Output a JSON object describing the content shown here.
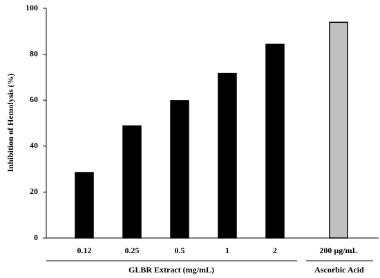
{
  "chart_data": {
    "type": "bar",
    "y_label": "Inhibition of Hemolysis (%)",
    "categories": [
      "0.12",
      "0.25",
      "0.5",
      "1",
      "2",
      "200 µg/mL"
    ],
    "values": [
      28.5,
      48.8,
      59.8,
      71.6,
      84.3,
      93.9
    ],
    "colors": [
      "#000000",
      "#000000",
      "#000000",
      "#000000",
      "#000000",
      "#c0c0c0"
    ],
    "group_labels": [
      "GLBR Extract (mg/mL)",
      "Ascorbic Acid"
    ],
    "ylim": [
      0,
      100
    ],
    "yticks": [
      0,
      20,
      40,
      60,
      80,
      100
    ],
    "grid": false
  }
}
